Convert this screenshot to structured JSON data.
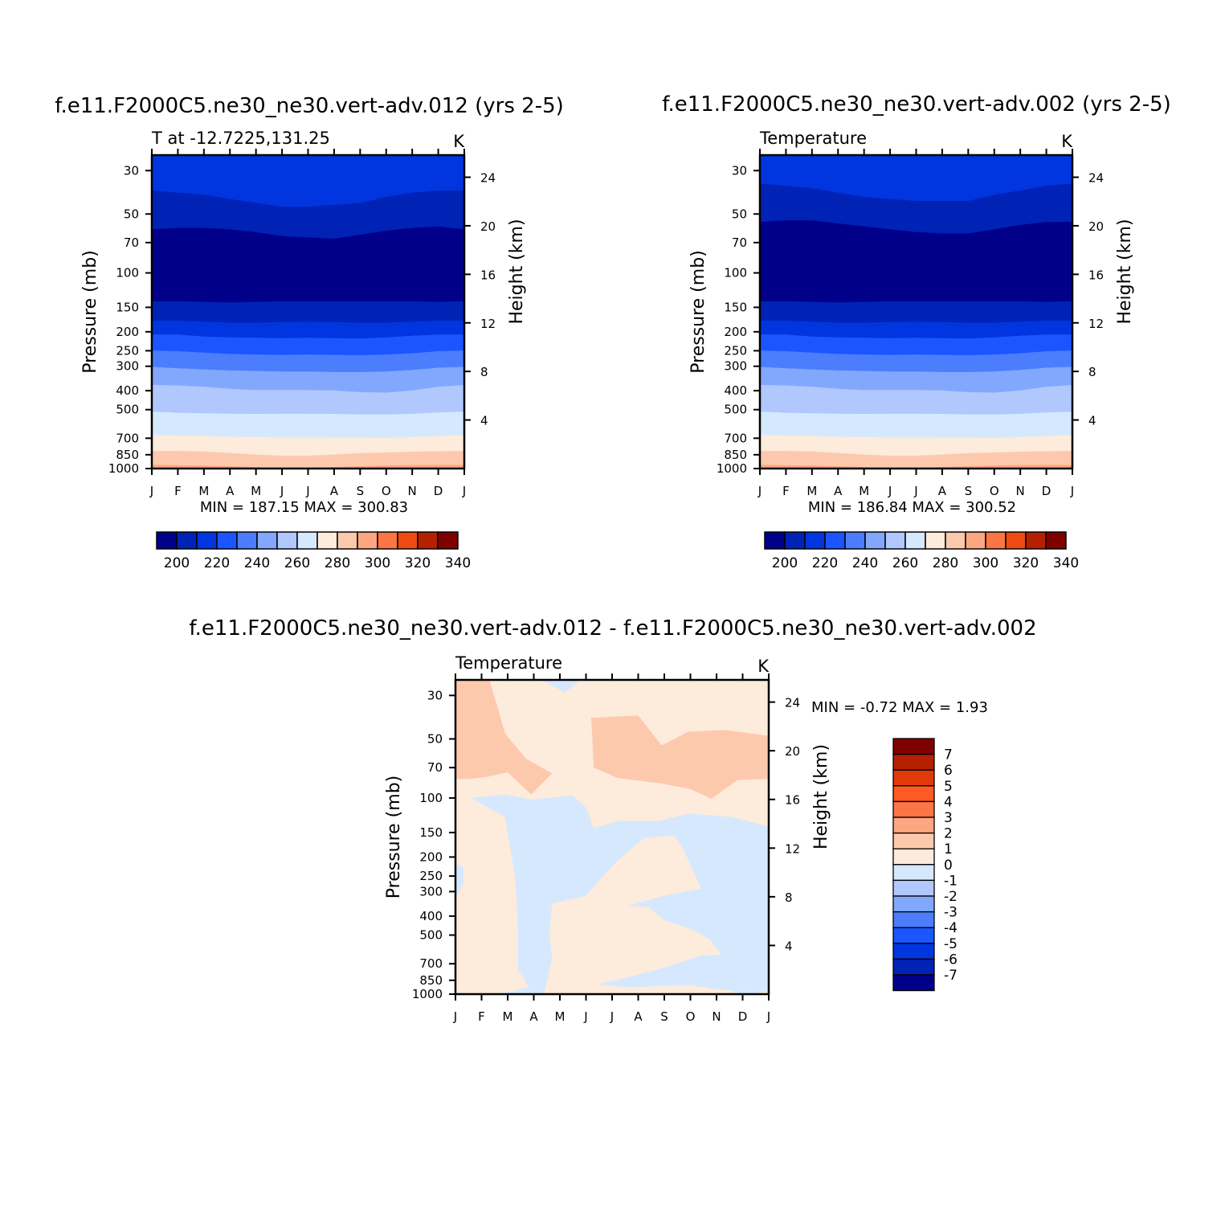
{
  "panels": [
    {
      "id": "left",
      "title": "f.e11.F2000C5.ne30_ne30.vert-adv.012 (yrs 2-5)",
      "left_string": "T at -12.7225,131.25",
      "right_string": "K",
      "minmax": "MIN = 187.15 MAX = 300.83"
    },
    {
      "id": "right",
      "title": "f.e11.F2000C5.ne30_ne30.vert-adv.002 (yrs 2-5)",
      "left_string": "Temperature",
      "right_string": "K",
      "minmax": "MIN = 186.84 MAX = 300.52"
    },
    {
      "id": "diff",
      "title": "f.e11.F2000C5.ne30_ne30.vert-adv.012 - f.e11.F2000C5.ne30_ne30.vert-adv.002",
      "left_string": "Temperature",
      "right_string": "K",
      "minmax": "MIN =   -0.72 MAX =    1.93"
    }
  ],
  "chart_data": [
    {
      "type": "heatmap",
      "subtype": "filled-contour",
      "title": "f.e11.F2000C5.ne30_ne30.vert-adv.012 (yrs 2-5)",
      "left_string": "T at -12.7225,131.25",
      "units": "K",
      "xlabel": "",
      "ylabel": "Pressure (mb)",
      "ylabel_right": "Height (km)",
      "x_ticks": [
        "J",
        "F",
        "M",
        "A",
        "M",
        "J",
        "J",
        "A",
        "S",
        "O",
        "N",
        "D",
        "J"
      ],
      "y_ticks": [
        30,
        50,
        70,
        100,
        150,
        200,
        250,
        300,
        400,
        500,
        700,
        850,
        1000
      ],
      "y_ticks_right": [
        24,
        20,
        16,
        12,
        8,
        4
      ],
      "y_scale": "log-pressure",
      "y_range": [
        1000,
        25
      ],
      "min": 187.15,
      "max": 300.83,
      "levels": [
        200,
        210,
        220,
        230,
        240,
        250,
        260,
        270,
        280,
        290,
        300,
        310,
        320,
        330,
        340
      ],
      "colorbar_labels": [
        "200",
        "220",
        "240",
        "260",
        "280",
        "300",
        "320",
        "340"
      ],
      "contour_lines": [
        {
          "level": 210,
          "pressure": [
            38,
            39,
            40,
            42,
            44,
            46,
            46,
            45,
            44,
            41,
            39,
            38,
            38
          ]
        },
        {
          "level": 200,
          "pressure": [
            60,
            59,
            59,
            60,
            62,
            65,
            66,
            67,
            64,
            61,
            59,
            58,
            60
          ]
        },
        {
          "level": 210.5,
          "pressure": [
            140,
            140,
            141,
            142,
            141,
            140,
            140,
            140,
            140,
            140,
            140,
            141,
            140
          ]
        },
        {
          "level": 220,
          "pressure": [
            176,
            176,
            178,
            180,
            180,
            179,
            178,
            179,
            180,
            180,
            178,
            176,
            176
          ]
        },
        {
          "level": 230,
          "pressure": [
            207,
            207,
            212,
            214,
            215,
            216,
            215,
            216,
            217,
            214,
            210,
            207,
            207
          ]
        },
        {
          "level": 240,
          "pressure": [
            250,
            252,
            256,
            260,
            262,
            263,
            262,
            263,
            264,
            262,
            258,
            252,
            250
          ]
        },
        {
          "level": 250,
          "pressure": [
            303,
            308,
            312,
            316,
            318,
            320,
            320,
            322,
            322,
            320,
            314,
            306,
            303
          ]
        },
        {
          "level": 260,
          "pressure": [
            375,
            377,
            383,
            392,
            398,
            398,
            398,
            400,
            408,
            410,
            400,
            383,
            375
          ]
        },
        {
          "level": 270,
          "pressure": [
            513,
            520,
            523,
            526,
            527,
            526,
            526,
            527,
            530,
            530,
            527,
            518,
            513
          ]
        },
        {
          "level": 280,
          "pressure": [
            675,
            680,
            682,
            690,
            692,
            695,
            695,
            697,
            697,
            700,
            692,
            684,
            675
          ]
        },
        {
          "level": 290,
          "pressure": [
            815,
            815,
            820,
            835,
            850,
            862,
            862,
            850,
            836,
            830,
            822,
            818,
            815
          ]
        },
        {
          "level": 300,
          "pressure": [
            960,
            963,
            968,
            975,
            985,
            992,
            992,
            985,
            975,
            965,
            962,
            960,
            960
          ]
        }
      ]
    },
    {
      "type": "heatmap",
      "subtype": "filled-contour",
      "title": "f.e11.F2000C5.ne30_ne30.vert-adv.002 (yrs 2-5)",
      "left_string": "Temperature",
      "units": "K",
      "xlabel": "",
      "ylabel": "Pressure (mb)",
      "ylabel_right": "Height (km)",
      "x_ticks": [
        "J",
        "F",
        "M",
        "A",
        "M",
        "J",
        "J",
        "A",
        "S",
        "O",
        "N",
        "D",
        "J"
      ],
      "y_ticks": [
        30,
        50,
        70,
        100,
        150,
        200,
        250,
        300,
        400,
        500,
        700,
        850,
        1000
      ],
      "y_ticks_right": [
        24,
        20,
        16,
        12,
        8,
        4
      ],
      "y_scale": "log-pressure",
      "y_range": [
        1000,
        25
      ],
      "min": 186.84,
      "max": 300.52,
      "levels": [
        200,
        210,
        220,
        230,
        240,
        250,
        260,
        270,
        280,
        290,
        300,
        310,
        320,
        330,
        340
      ],
      "colorbar_labels": [
        "200",
        "220",
        "240",
        "260",
        "280",
        "300",
        "320",
        "340"
      ],
      "contour_lines": [
        {
          "level": 210,
          "pressure": [
            35,
            36,
            37,
            39,
            41,
            42,
            43,
            43,
            43,
            40,
            38,
            36,
            35
          ]
        },
        {
          "level": 200,
          "pressure": [
            55,
            54,
            54,
            56,
            58,
            60,
            62,
            63,
            63,
            60,
            57,
            55,
            55
          ]
        },
        {
          "level": 210.5,
          "pressure": [
            140,
            140,
            141,
            142,
            141,
            140,
            140,
            140,
            140,
            140,
            140,
            141,
            140
          ]
        },
        {
          "level": 220,
          "pressure": [
            176,
            176,
            178,
            180,
            180,
            179,
            178,
            179,
            180,
            180,
            178,
            176,
            176
          ]
        },
        {
          "level": 230,
          "pressure": [
            207,
            207,
            212,
            214,
            215,
            216,
            215,
            216,
            217,
            214,
            210,
            207,
            207
          ]
        },
        {
          "level": 240,
          "pressure": [
            250,
            252,
            256,
            260,
            262,
            263,
            262,
            263,
            264,
            262,
            258,
            252,
            250
          ]
        },
        {
          "level": 250,
          "pressure": [
            303,
            308,
            312,
            316,
            318,
            320,
            320,
            322,
            322,
            320,
            314,
            306,
            303
          ]
        },
        {
          "level": 260,
          "pressure": [
            375,
            377,
            383,
            392,
            398,
            398,
            398,
            400,
            408,
            410,
            400,
            383,
            375
          ]
        },
        {
          "level": 270,
          "pressure": [
            513,
            520,
            523,
            526,
            527,
            526,
            526,
            527,
            530,
            530,
            527,
            518,
            513
          ]
        },
        {
          "level": 280,
          "pressure": [
            675,
            680,
            682,
            690,
            692,
            695,
            695,
            697,
            697,
            700,
            692,
            684,
            675
          ]
        },
        {
          "level": 290,
          "pressure": [
            815,
            815,
            820,
            835,
            850,
            862,
            862,
            850,
            836,
            830,
            822,
            818,
            815
          ]
        },
        {
          "level": 300,
          "pressure": [
            960,
            963,
            968,
            975,
            985,
            992,
            992,
            985,
            975,
            965,
            962,
            960,
            960
          ]
        }
      ]
    },
    {
      "type": "heatmap",
      "subtype": "filled-contour",
      "title": "f.e11.F2000C5.ne30_ne30.vert-adv.012 - f.e11.F2000C5.ne30_ne30.vert-adv.002",
      "left_string": "Temperature",
      "units": "K",
      "xlabel": "",
      "ylabel": "Pressure (mb)",
      "ylabel_right": "Height (km)",
      "x_ticks": [
        "J",
        "F",
        "M",
        "A",
        "M",
        "J",
        "J",
        "A",
        "S",
        "O",
        "N",
        "D",
        "J"
      ],
      "y_ticks": [
        30,
        50,
        70,
        100,
        150,
        200,
        250,
        300,
        400,
        500,
        700,
        850,
        1000
      ],
      "y_ticks_right": [
        24,
        20,
        16,
        12,
        8,
        4
      ],
      "y_scale": "log-pressure",
      "y_range": [
        1000,
        25
      ],
      "min": -0.72,
      "max": 1.93,
      "levels": [
        -7,
        -6,
        -5,
        -4,
        -3,
        -2,
        -1,
        0,
        1,
        2,
        3,
        4,
        5,
        6,
        7
      ],
      "colorbar_labels": [
        "7",
        "6",
        "5",
        "4",
        "3",
        "2",
        "1",
        "0",
        "-1",
        "-2",
        "-3",
        "-4",
        "-5",
        "-6",
        "-7"
      ],
      "regions": [
        {
          "range": "1 to 2",
          "extent": "upper-left, roughly J-M at 25-80 mb"
        },
        {
          "range": "1 to 2",
          "extent": "upper-right, roughly J-J at 45-110 mb"
        },
        {
          "range": "-1 to 0",
          "extent": "mid column, roughly F-J at 100-1000 mb"
        },
        {
          "range": "-1 to 0",
          "extent": "right, roughly A-J at 150-1000 mb"
        },
        {
          "range": "0 to 1",
          "extent": "elsewhere"
        }
      ]
    }
  ],
  "colors": {
    "temperature_palette": [
      "#00008a",
      "#0022b5",
      "#0035e0",
      "#1a55ff",
      "#4b7dfd",
      "#82a8fe",
      "#b0c8fd",
      "#d5e8fe",
      "#fdebdb",
      "#fdc9ad",
      "#fda780",
      "#fd7545",
      "#f04a13",
      "#b42000",
      "#800000"
    ],
    "diff_palette_top_to_bottom": [
      "#800000",
      "#b42000",
      "#e03a0a",
      "#fd5a25",
      "#fd7545",
      "#fda780",
      "#fdc9ad",
      "#fdebdb",
      "#d5e8fe",
      "#b0c8fd",
      "#82a8fe",
      "#4b7dfd",
      "#1a55ff",
      "#0035e0",
      "#0022b5",
      "#00008a"
    ]
  }
}
